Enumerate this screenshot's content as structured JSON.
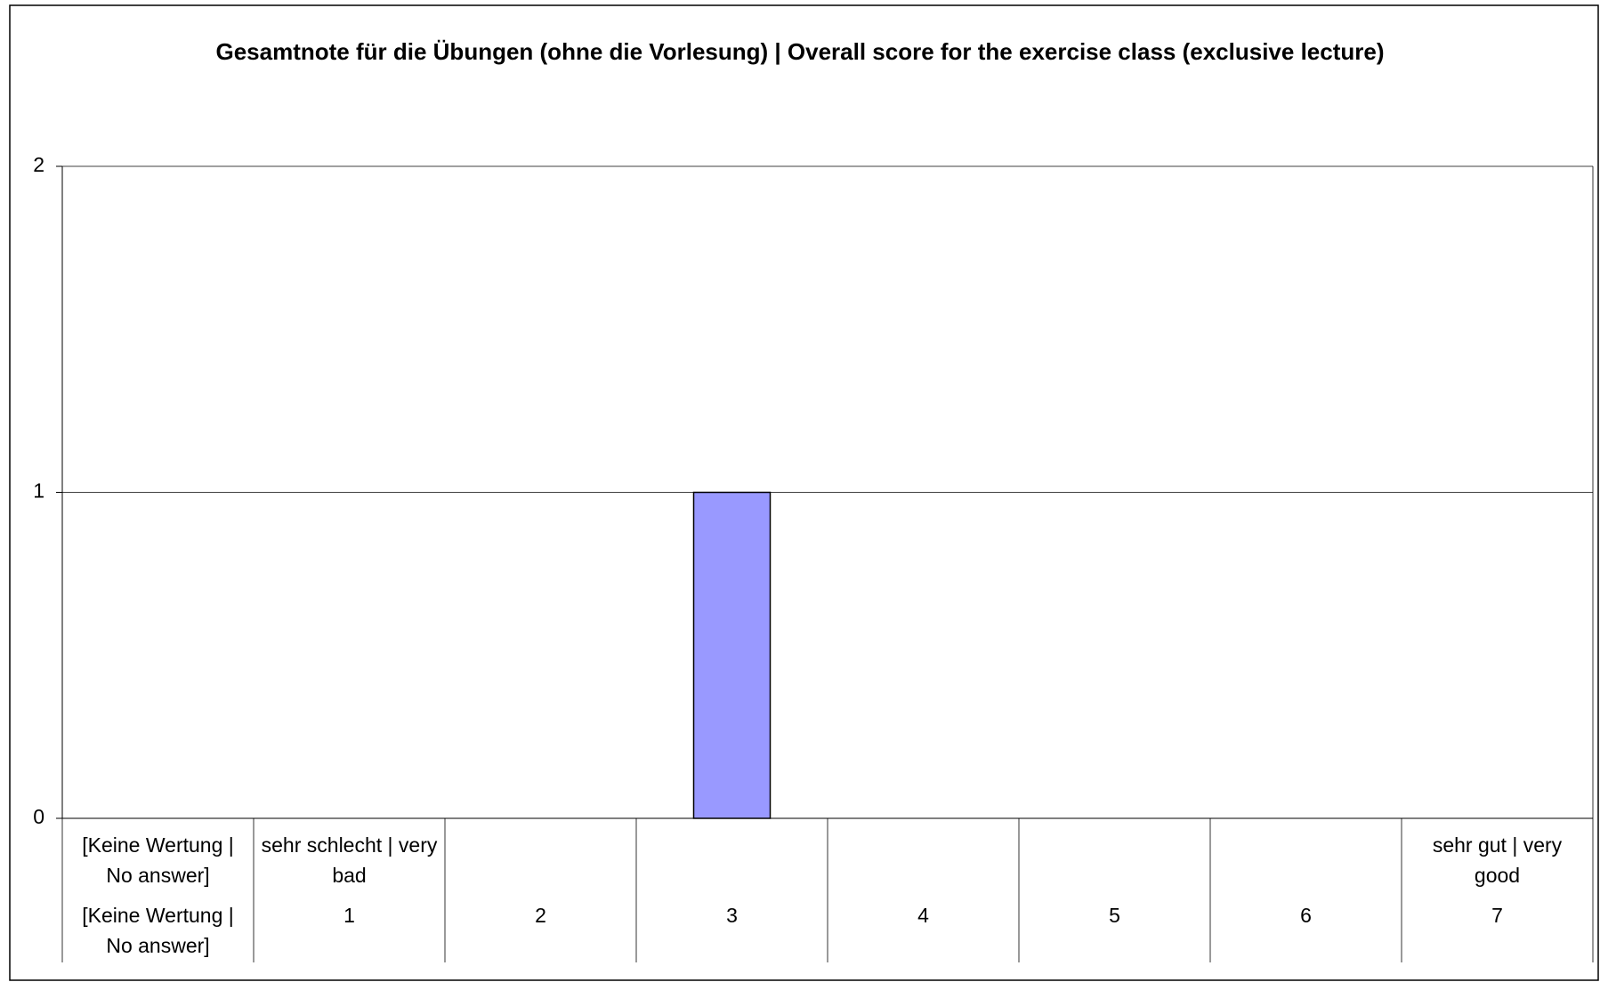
{
  "chart_data": {
    "type": "bar",
    "title": "Gesamtnote für die Übungen (ohne die Vorlesung) | Overall score for the exercise class (exclusive lecture)",
    "category_groups": [
      "[Keine Wertung | No answer]",
      "sehr schlecht | very bad",
      null,
      null,
      null,
      null,
      null,
      "sehr gut | very good"
    ],
    "categories": [
      "[Keine Wertung | No answer]",
      "1",
      "2",
      "3",
      "4",
      "5",
      "6",
      "7"
    ],
    "values": [
      0,
      0,
      0,
      1,
      0,
      0,
      0,
      0
    ],
    "color": "#9999ff",
    "ylim": [
      0,
      2
    ],
    "yticks": [
      0,
      1,
      2
    ],
    "grid": true
  }
}
